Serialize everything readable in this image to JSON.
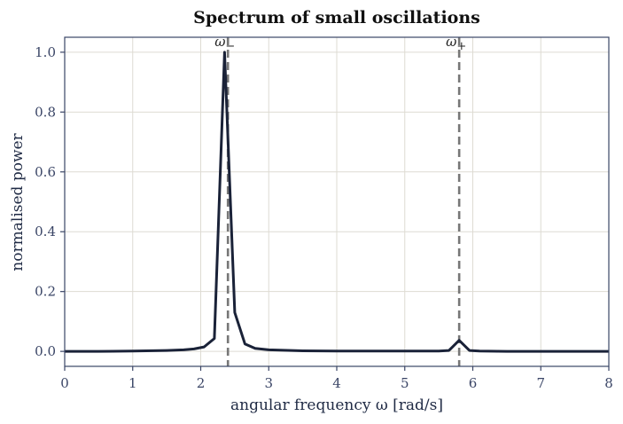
{
  "chart_data": {
    "type": "line",
    "title": "Spectrum of small oscillations",
    "xlabel": "angular frequency  ω  [rad/s]",
    "ylabel": "normalised power",
    "xlim": [
      0,
      8
    ],
    "ylim": [
      -0.05,
      1.05
    ],
    "xticks": [
      0,
      1,
      2,
      3,
      4,
      5,
      6,
      7,
      8
    ],
    "yticks": [
      0.0,
      0.2,
      0.4,
      0.6,
      0.8,
      1.0
    ],
    "xtick_labels": [
      "0",
      "1",
      "2",
      "3",
      "4",
      "5",
      "6",
      "7",
      "8"
    ],
    "ytick_labels": [
      "0.0",
      "0.2",
      "0.4",
      "0.6",
      "0.8",
      "1.0"
    ],
    "grid": true,
    "legend": "none",
    "series": [
      {
        "x": [
          0,
          0.5,
          1.0,
          1.5,
          1.75,
          1.9,
          2.05,
          2.2,
          2.35,
          2.5,
          2.65,
          2.8,
          3.0,
          3.5,
          4.0,
          5.0,
          5.5,
          5.65,
          5.8,
          5.95,
          6.1,
          6.5,
          7.0,
          8.0
        ],
        "y": [
          0.0,
          0.0,
          0.001,
          0.003,
          0.005,
          0.008,
          0.015,
          0.043,
          1.0,
          0.13,
          0.025,
          0.01,
          0.005,
          0.002,
          0.001,
          0.001,
          0.001,
          0.003,
          0.037,
          0.003,
          0.001,
          0.0,
          0.0,
          0.0
        ],
        "color": "#1a2238"
      }
    ],
    "markers": [
      {
        "x": 2.4,
        "label": "ω−",
        "symbol": "ω",
        "sub": "−",
        "color": "#777777",
        "style": "dashed"
      },
      {
        "x": 5.8,
        "label": "ω+",
        "symbol": "ω",
        "sub": "+",
        "color": "#777777",
        "style": "dashed"
      }
    ]
  }
}
